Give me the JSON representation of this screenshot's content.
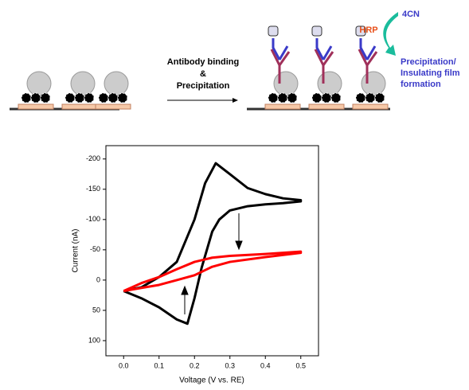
{
  "diagram": {
    "step_label": [
      "Antibody binding",
      "&",
      "Precipitation"
    ],
    "enzyme": "HRP",
    "substrate": "4CN",
    "result_label": [
      "Precipitation/",
      "Insulating film",
      "formation"
    ]
  },
  "chart_data": {
    "type": "line",
    "x_label": "Voltage (V vs. RE)",
    "y_label": "Current (nA)",
    "xlim": [
      -0.05,
      0.55
    ],
    "xticks": [
      {
        "value": 0,
        "label": "0.0"
      },
      0.1,
      0.2,
      0.3,
      0.4,
      0.5
    ],
    "ylim": [
      125,
      -222
    ],
    "yticks": [
      -200,
      -150,
      -100,
      -50,
      0,
      50,
      100
    ],
    "series": [
      {
        "color": "#000000",
        "x": [
          0,
          0.05,
          0.1,
          0.15,
          0.2,
          0.23,
          0.26,
          0.3,
          0.35,
          0.4,
          0.45,
          0.5,
          0.5,
          0.45,
          0.4,
          0.35,
          0.3,
          0.27,
          0.25,
          0.22,
          0.2,
          0.18,
          0.15,
          0.1,
          0.05,
          0
        ],
        "values": [
          18,
          12,
          -5,
          -30,
          -100,
          -160,
          -193,
          -175,
          -152,
          -142,
          -135,
          -132,
          -130,
          -127,
          -125,
          -122,
          -115,
          -100,
          -80,
          -20,
          30,
          72,
          65,
          45,
          30,
          18
        ]
      },
      {
        "color": "#ff0000",
        "x": [
          0,
          0.05,
          0.1,
          0.15,
          0.2,
          0.25,
          0.3,
          0.4,
          0.5,
          0.5,
          0.4,
          0.3,
          0.25,
          0.2,
          0.15,
          0.1,
          0.05,
          0
        ],
        "values": [
          18,
          5,
          -5,
          -18,
          -30,
          -37,
          -40,
          -43,
          -47,
          -45,
          -38,
          -30,
          -22,
          -8,
          0,
          8,
          13,
          18
        ]
      }
    ]
  }
}
